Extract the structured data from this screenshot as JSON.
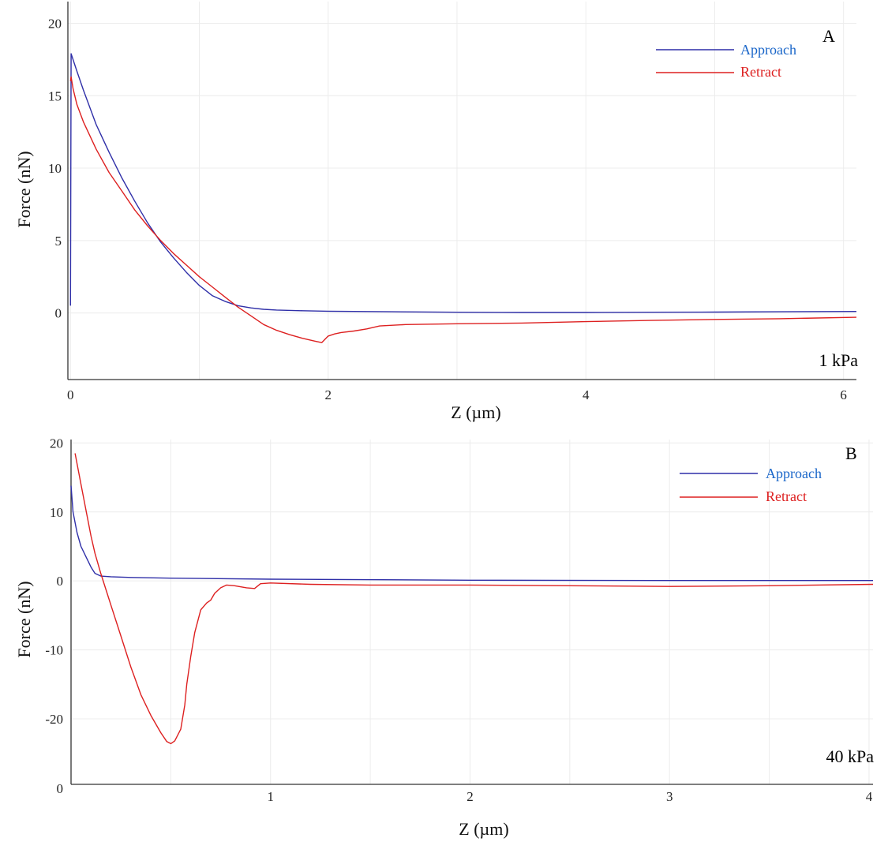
{
  "colors": {
    "approach": "#2f2fa8",
    "retract": "#dd2020",
    "approach_text": "#1a66c9",
    "retract_text": "#dd2020"
  },
  "chart_data": [
    {
      "panel_id": "A",
      "type": "line",
      "panel_letter": "A",
      "condition_label": "1 kPa",
      "xlabel": "Z (µm)",
      "ylabel": "Force (nN)",
      "xlim": [
        -0.02,
        6.1
      ],
      "ylim": [
        -4.6,
        21.5
      ],
      "x_ticks": [
        0,
        2,
        4,
        6
      ],
      "x_tick_labels": [
        "0",
        "2",
        "4",
        "6"
      ],
      "y_ticks": [
        0,
        5,
        10,
        15,
        20
      ],
      "y_tick_labels": [
        "0",
        "5",
        "10",
        "15",
        "20"
      ],
      "legend": {
        "position": "top-right",
        "entries": [
          "Approach",
          "Retract"
        ]
      },
      "series": [
        {
          "name": "Approach",
          "color_key": "approach",
          "x": [
            0,
            0.005,
            0.02,
            0.05,
            0.1,
            0.2,
            0.3,
            0.4,
            0.5,
            0.6,
            0.7,
            0.8,
            0.9,
            1.0,
            1.1,
            1.2,
            1.3,
            1.4,
            1.5,
            1.6,
            1.8,
            2.0,
            2.5,
            3.0,
            3.5,
            4.0,
            4.5,
            5.0,
            5.5,
            6.1
          ],
          "y": [
            0.5,
            17.9,
            17.5,
            16.7,
            15.4,
            13.0,
            11.1,
            9.3,
            7.7,
            6.2,
            4.9,
            3.8,
            2.8,
            1.9,
            1.2,
            0.8,
            0.5,
            0.35,
            0.25,
            0.2,
            0.15,
            0.12,
            0.08,
            0.05,
            0.03,
            0.03,
            0.05,
            0.06,
            0.08,
            0.1
          ]
        },
        {
          "name": "Retract",
          "color_key": "retract",
          "x": [
            0,
            0.005,
            0.02,
            0.05,
            0.1,
            0.2,
            0.3,
            0.4,
            0.5,
            0.6,
            0.7,
            0.8,
            0.9,
            1.0,
            1.1,
            1.2,
            1.3,
            1.4,
            1.5,
            1.6,
            1.7,
            1.8,
            1.9,
            1.95,
            2.0,
            2.05,
            2.1,
            2.2,
            2.3,
            2.4,
            2.6,
            3.0,
            3.5,
            4.0,
            4.5,
            5.0,
            5.5,
            6.1
          ],
          "y": [
            16.0,
            16.3,
            15.5,
            14.4,
            13.2,
            11.3,
            9.7,
            8.4,
            7.1,
            6.0,
            5.0,
            4.1,
            3.3,
            2.5,
            1.8,
            1.1,
            0.4,
            -0.2,
            -0.8,
            -1.2,
            -1.5,
            -1.75,
            -1.95,
            -2.05,
            -1.6,
            -1.45,
            -1.35,
            -1.25,
            -1.1,
            -0.9,
            -0.8,
            -0.75,
            -0.7,
            -0.6,
            -0.52,
            -0.45,
            -0.4,
            -0.3
          ]
        }
      ]
    },
    {
      "panel_id": "B",
      "type": "line",
      "panel_letter": "B",
      "condition_label": "40 kPa",
      "xlabel": "Z (µm)",
      "ylabel": "Force (nN)",
      "xlim": [
        0,
        4.02
      ],
      "ylim": [
        -29.5,
        20.5
      ],
      "x_ticks": [
        1,
        2,
        3,
        4
      ],
      "x_tick_labels": [
        "1",
        "2",
        "3",
        "4"
      ],
      "y_ticks": [
        -20,
        -10,
        0,
        10,
        20
      ],
      "y_tick_labels": [
        "-20",
        "-10",
        "0",
        "10",
        "20"
      ],
      "extra_y_tick_label": "0",
      "legend": {
        "position": "top-right",
        "entries": [
          "Approach",
          "Retract"
        ]
      },
      "series": [
        {
          "name": "Approach",
          "color_key": "approach",
          "x": [
            0.0,
            0.01,
            0.03,
            0.05,
            0.08,
            0.1,
            0.12,
            0.15,
            0.2,
            0.3,
            0.5,
            1.0,
            2.0,
            3.0,
            4.02
          ],
          "y": [
            13.8,
            10.0,
            7.0,
            5.0,
            3.2,
            2.0,
            1.1,
            0.7,
            0.6,
            0.5,
            0.4,
            0.25,
            0.1,
            0.05,
            0.05
          ],
          "shift": 0.01
        },
        {
          "name": "Retract",
          "color_key": "retract",
          "x": [
            0.02,
            0.05,
            0.08,
            0.1,
            0.12,
            0.15,
            0.2,
            0.25,
            0.3,
            0.35,
            0.4,
            0.45,
            0.48,
            0.5,
            0.52,
            0.55,
            0.57,
            0.58,
            0.6,
            0.62,
            0.65,
            0.68,
            0.7,
            0.72,
            0.75,
            0.78,
            0.82,
            0.88,
            0.92,
            0.95,
            1.0,
            1.2,
            1.5,
            2.0,
            2.5,
            3.0,
            3.5,
            4.02
          ],
          "y": [
            18.5,
            14.0,
            9.5,
            6.5,
            4.0,
            1.0,
            -3.5,
            -8.0,
            -12.5,
            -16.5,
            -19.5,
            -22.0,
            -23.3,
            -23.6,
            -23.2,
            -21.5,
            -18.0,
            -15.0,
            -11.0,
            -7.5,
            -4.2,
            -3.2,
            -2.8,
            -1.8,
            -1.0,
            -0.6,
            -0.7,
            -1.0,
            -1.1,
            -0.4,
            -0.3,
            -0.5,
            -0.6,
            -0.6,
            -0.7,
            -0.8,
            -0.7,
            -0.5
          ]
        }
      ]
    }
  ]
}
